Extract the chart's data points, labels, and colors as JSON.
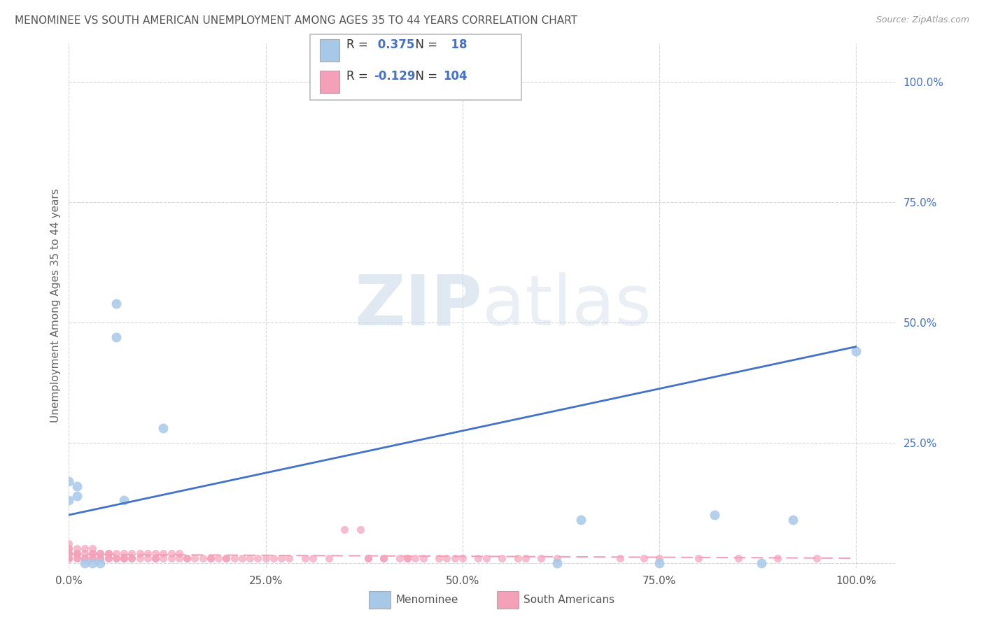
{
  "title": "MENOMINEE VS SOUTH AMERICAN UNEMPLOYMENT AMONG AGES 35 TO 44 YEARS CORRELATION CHART",
  "source": "Source: ZipAtlas.com",
  "ylabel": "Unemployment Among Ages 35 to 44 years",
  "watermark_part1": "ZIP",
  "watermark_part2": "atlas",
  "menominee_R": 0.375,
  "menominee_N": 18,
  "southam_R": -0.129,
  "southam_N": 104,
  "menominee_color": "#a8c8e8",
  "southam_color": "#f4a0b8",
  "menominee_line_color": "#4472c4",
  "southam_line_color": "#f4a0b8",
  "background_color": "#ffffff",
  "grid_color": "#cccccc",
  "menominee_x": [
    0.0,
    0.0,
    0.01,
    0.01,
    0.02,
    0.03,
    0.04,
    0.62,
    0.65,
    0.75,
    0.82,
    0.88,
    0.92,
    1.0,
    0.06,
    0.06,
    0.07,
    0.12
  ],
  "menominee_y": [
    0.17,
    0.13,
    0.16,
    0.14,
    0.0,
    0.0,
    0.0,
    0.0,
    0.09,
    0.0,
    0.1,
    0.0,
    0.09,
    0.44,
    0.54,
    0.47,
    0.13,
    0.28
  ],
  "southam_x": [
    0.0,
    0.0,
    0.0,
    0.0,
    0.0,
    0.0,
    0.0,
    0.0,
    0.0,
    0.0,
    0.01,
    0.01,
    0.01,
    0.01,
    0.01,
    0.02,
    0.02,
    0.02,
    0.02,
    0.03,
    0.03,
    0.03,
    0.03,
    0.03,
    0.04,
    0.04,
    0.04,
    0.04,
    0.05,
    0.05,
    0.05,
    0.05,
    0.06,
    0.06,
    0.06,
    0.07,
    0.07,
    0.07,
    0.07,
    0.08,
    0.08,
    0.08,
    0.09,
    0.09,
    0.1,
    0.1,
    0.11,
    0.11,
    0.11,
    0.12,
    0.12,
    0.13,
    0.13,
    0.14,
    0.14,
    0.15,
    0.15,
    0.16,
    0.17,
    0.18,
    0.18,
    0.19,
    0.2,
    0.2,
    0.21,
    0.22,
    0.23,
    0.24,
    0.25,
    0.26,
    0.28,
    0.3,
    0.31,
    0.33,
    0.35,
    0.37,
    0.38,
    0.4,
    0.42,
    0.43,
    0.45,
    0.47,
    0.49,
    0.5,
    0.52,
    0.53,
    0.4,
    0.43,
    0.48,
    0.55,
    0.57,
    0.58,
    0.6,
    0.62,
    0.7,
    0.75,
    0.8,
    0.85,
    0.9,
    0.95,
    0.73,
    0.27,
    0.38,
    0.44
  ],
  "southam_y": [
    0.01,
    0.01,
    0.01,
    0.02,
    0.02,
    0.02,
    0.02,
    0.03,
    0.03,
    0.04,
    0.01,
    0.01,
    0.02,
    0.02,
    0.03,
    0.01,
    0.01,
    0.02,
    0.03,
    0.01,
    0.01,
    0.02,
    0.02,
    0.03,
    0.01,
    0.01,
    0.02,
    0.02,
    0.01,
    0.01,
    0.02,
    0.02,
    0.01,
    0.01,
    0.02,
    0.01,
    0.01,
    0.01,
    0.02,
    0.01,
    0.01,
    0.02,
    0.01,
    0.02,
    0.01,
    0.02,
    0.01,
    0.01,
    0.02,
    0.01,
    0.02,
    0.01,
    0.02,
    0.01,
    0.02,
    0.01,
    0.01,
    0.01,
    0.01,
    0.01,
    0.01,
    0.01,
    0.01,
    0.01,
    0.01,
    0.01,
    0.01,
    0.01,
    0.01,
    0.01,
    0.01,
    0.01,
    0.01,
    0.01,
    0.07,
    0.07,
    0.01,
    0.01,
    0.01,
    0.01,
    0.01,
    0.01,
    0.01,
    0.01,
    0.01,
    0.01,
    0.01,
    0.01,
    0.01,
    0.01,
    0.01,
    0.01,
    0.01,
    0.01,
    0.01,
    0.01,
    0.01,
    0.01,
    0.01,
    0.01,
    0.01,
    0.01,
    0.01,
    0.01
  ],
  "xlim": [
    0.0,
    1.05
  ],
  "ylim": [
    -0.01,
    1.08
  ],
  "xticks": [
    0.0,
    0.25,
    0.5,
    0.75,
    1.0
  ],
  "xtick_labels": [
    "0.0%",
    "25.0%",
    "50.0%",
    "75.0%",
    "100.0%"
  ],
  "yticks": [
    0.0,
    0.25,
    0.5,
    0.75,
    1.0
  ],
  "ytick_labels": [
    "",
    "25.0%",
    "50.0%",
    "75.0%",
    "100.0%"
  ],
  "men_line_x0": 0.0,
  "men_line_x1": 1.0,
  "men_line_y0": 0.1,
  "men_line_y1": 0.45,
  "sa_line_x0": 0.0,
  "sa_line_x1": 1.0,
  "sa_line_y0": 0.018,
  "sa_line_y1": 0.01,
  "title_fontsize": 11,
  "label_fontsize": 11,
  "tick_fontsize": 11,
  "source_fontsize": 9,
  "legend_text_color": "#4472c4",
  "legend_label_color": "#333333"
}
